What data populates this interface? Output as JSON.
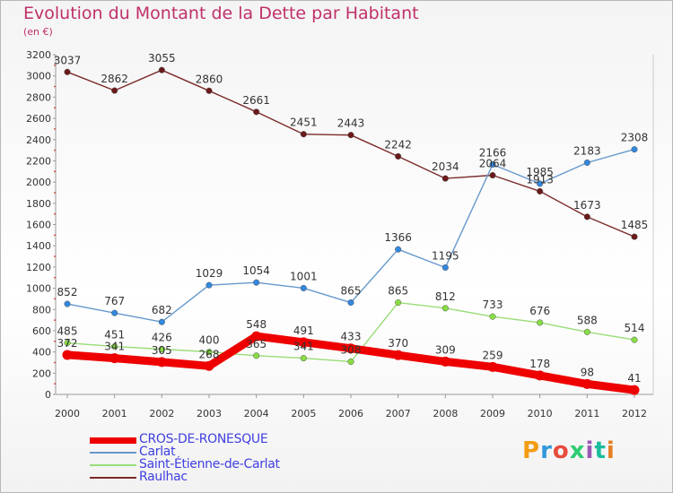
{
  "header": {
    "title": "Evolution du Montant de la Dette par Habitant",
    "subtitle": "(en €)"
  },
  "brand": {
    "logo_text": "Proxiti",
    "logo_colors": [
      "#f39c12",
      "#3498db",
      "#e74c3c",
      "#2ecc71",
      "#9b59b6",
      "#1abc9c",
      "#e67e22"
    ]
  },
  "chart_data": {
    "type": "line",
    "title": "Evolution du Montant de la Dette par Habitant",
    "subtitle": "(en €)",
    "x": [
      "2000",
      "2001",
      "2002",
      "2003",
      "2004",
      "2005",
      "2006",
      "2007",
      "2008",
      "2009",
      "2010",
      "2011",
      "2012"
    ],
    "ylim": [
      0,
      3200
    ],
    "yticks": [
      0,
      200,
      400,
      600,
      800,
      1000,
      1200,
      1400,
      1600,
      1800,
      2000,
      2200,
      2400,
      2600,
      2800,
      3000,
      3200
    ],
    "grid": false,
    "legend_position": "bottom-left",
    "series": [
      {
        "name": "Raulhac",
        "color": "#7b2a2a",
        "marker": "#6a1a1a",
        "values": [
          3037,
          2862,
          3055,
          2860,
          2661,
          2451,
          2443,
          2242,
          2034,
          2064,
          1913,
          1673,
          1485
        ]
      },
      {
        "name": "Saint-Étienne-de-Carlat",
        "color": "#99dd77",
        "marker": "#88dd44",
        "values": [
          485,
          451,
          426,
          400,
          365,
          341,
          308,
          865,
          812,
          733,
          676,
          588,
          514
        ]
      },
      {
        "name": "Carlat",
        "color": "#6699cc",
        "marker": "#3388dd",
        "values": [
          852,
          767,
          682,
          1029,
          1054,
          1001,
          865,
          1366,
          1195,
          2166,
          1985,
          2183,
          2308
        ]
      },
      {
        "name": "CROS-DE-RONESQUE",
        "color": "#ee0000",
        "marker": "#ee0000",
        "values": [
          372,
          341,
          305,
          268,
          548,
          491,
          433,
          370,
          309,
          259,
          178,
          98,
          41
        ]
      }
    ],
    "legend": [
      "CROS-DE-RONESQUE",
      "Carlat",
      "Saint-Étienne-de-Carlat",
      "Raulhac"
    ]
  }
}
